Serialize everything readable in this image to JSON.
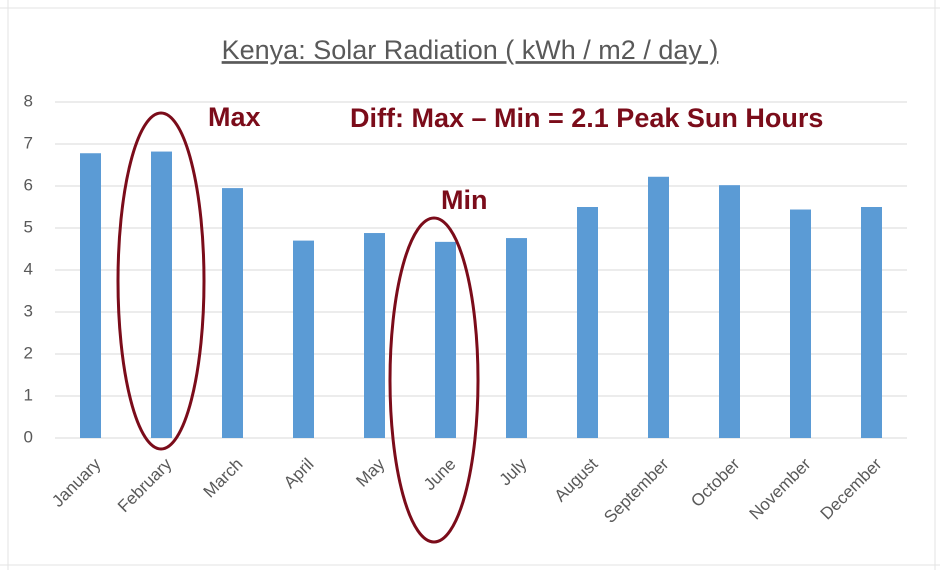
{
  "chart_data": {
    "type": "bar",
    "title": "Kenya: Solar Radiation ( kWh / m2 / day )",
    "categories": [
      "January",
      "February",
      "March",
      "April",
      "May",
      "June",
      "July",
      "August",
      "September",
      "October",
      "November",
      "December"
    ],
    "values": [
      6.78,
      6.82,
      5.95,
      4.7,
      4.88,
      4.67,
      4.76,
      5.5,
      6.22,
      6.02,
      5.44,
      5.5
    ],
    "color": "#5b9bd5",
    "ylim": [
      0,
      8
    ],
    "yticks": [
      0,
      1,
      2,
      3,
      4,
      5,
      6,
      7,
      8
    ],
    "grid": true,
    "annotations": [
      "Max",
      "Min",
      "Diff: Max – Min = 2.1 Peak Sun Hours"
    ]
  }
}
